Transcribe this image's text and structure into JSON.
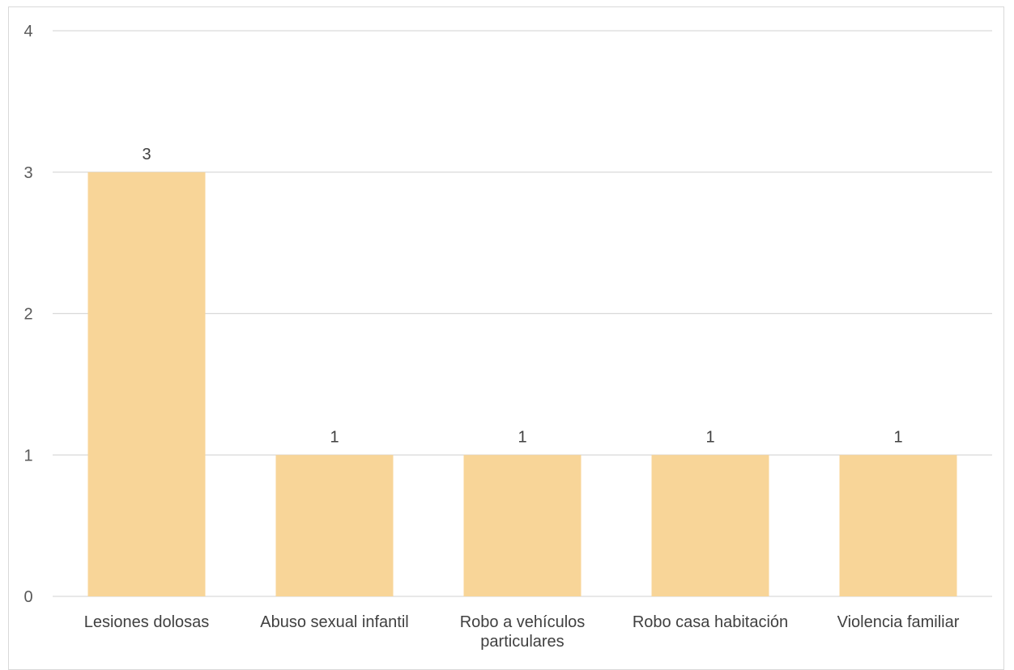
{
  "chart_data": {
    "type": "bar",
    "categories": [
      [
        "Lesiones dolosas"
      ],
      [
        "Abuso sexual infantil"
      ],
      [
        "Robo a vehículos",
        "particulares"
      ],
      [
        "Robo casa habitación"
      ],
      [
        "Violencia familiar"
      ]
    ],
    "values": [
      3,
      1,
      1,
      1,
      1
    ],
    "title": "",
    "xlabel": "",
    "ylabel": "",
    "ylim": [
      0,
      4
    ],
    "yticks": [
      0,
      1,
      2,
      3,
      4
    ],
    "grid": true,
    "legend": "none",
    "bar_color": "#f8d598",
    "grid_color": "#d9d9d9"
  }
}
